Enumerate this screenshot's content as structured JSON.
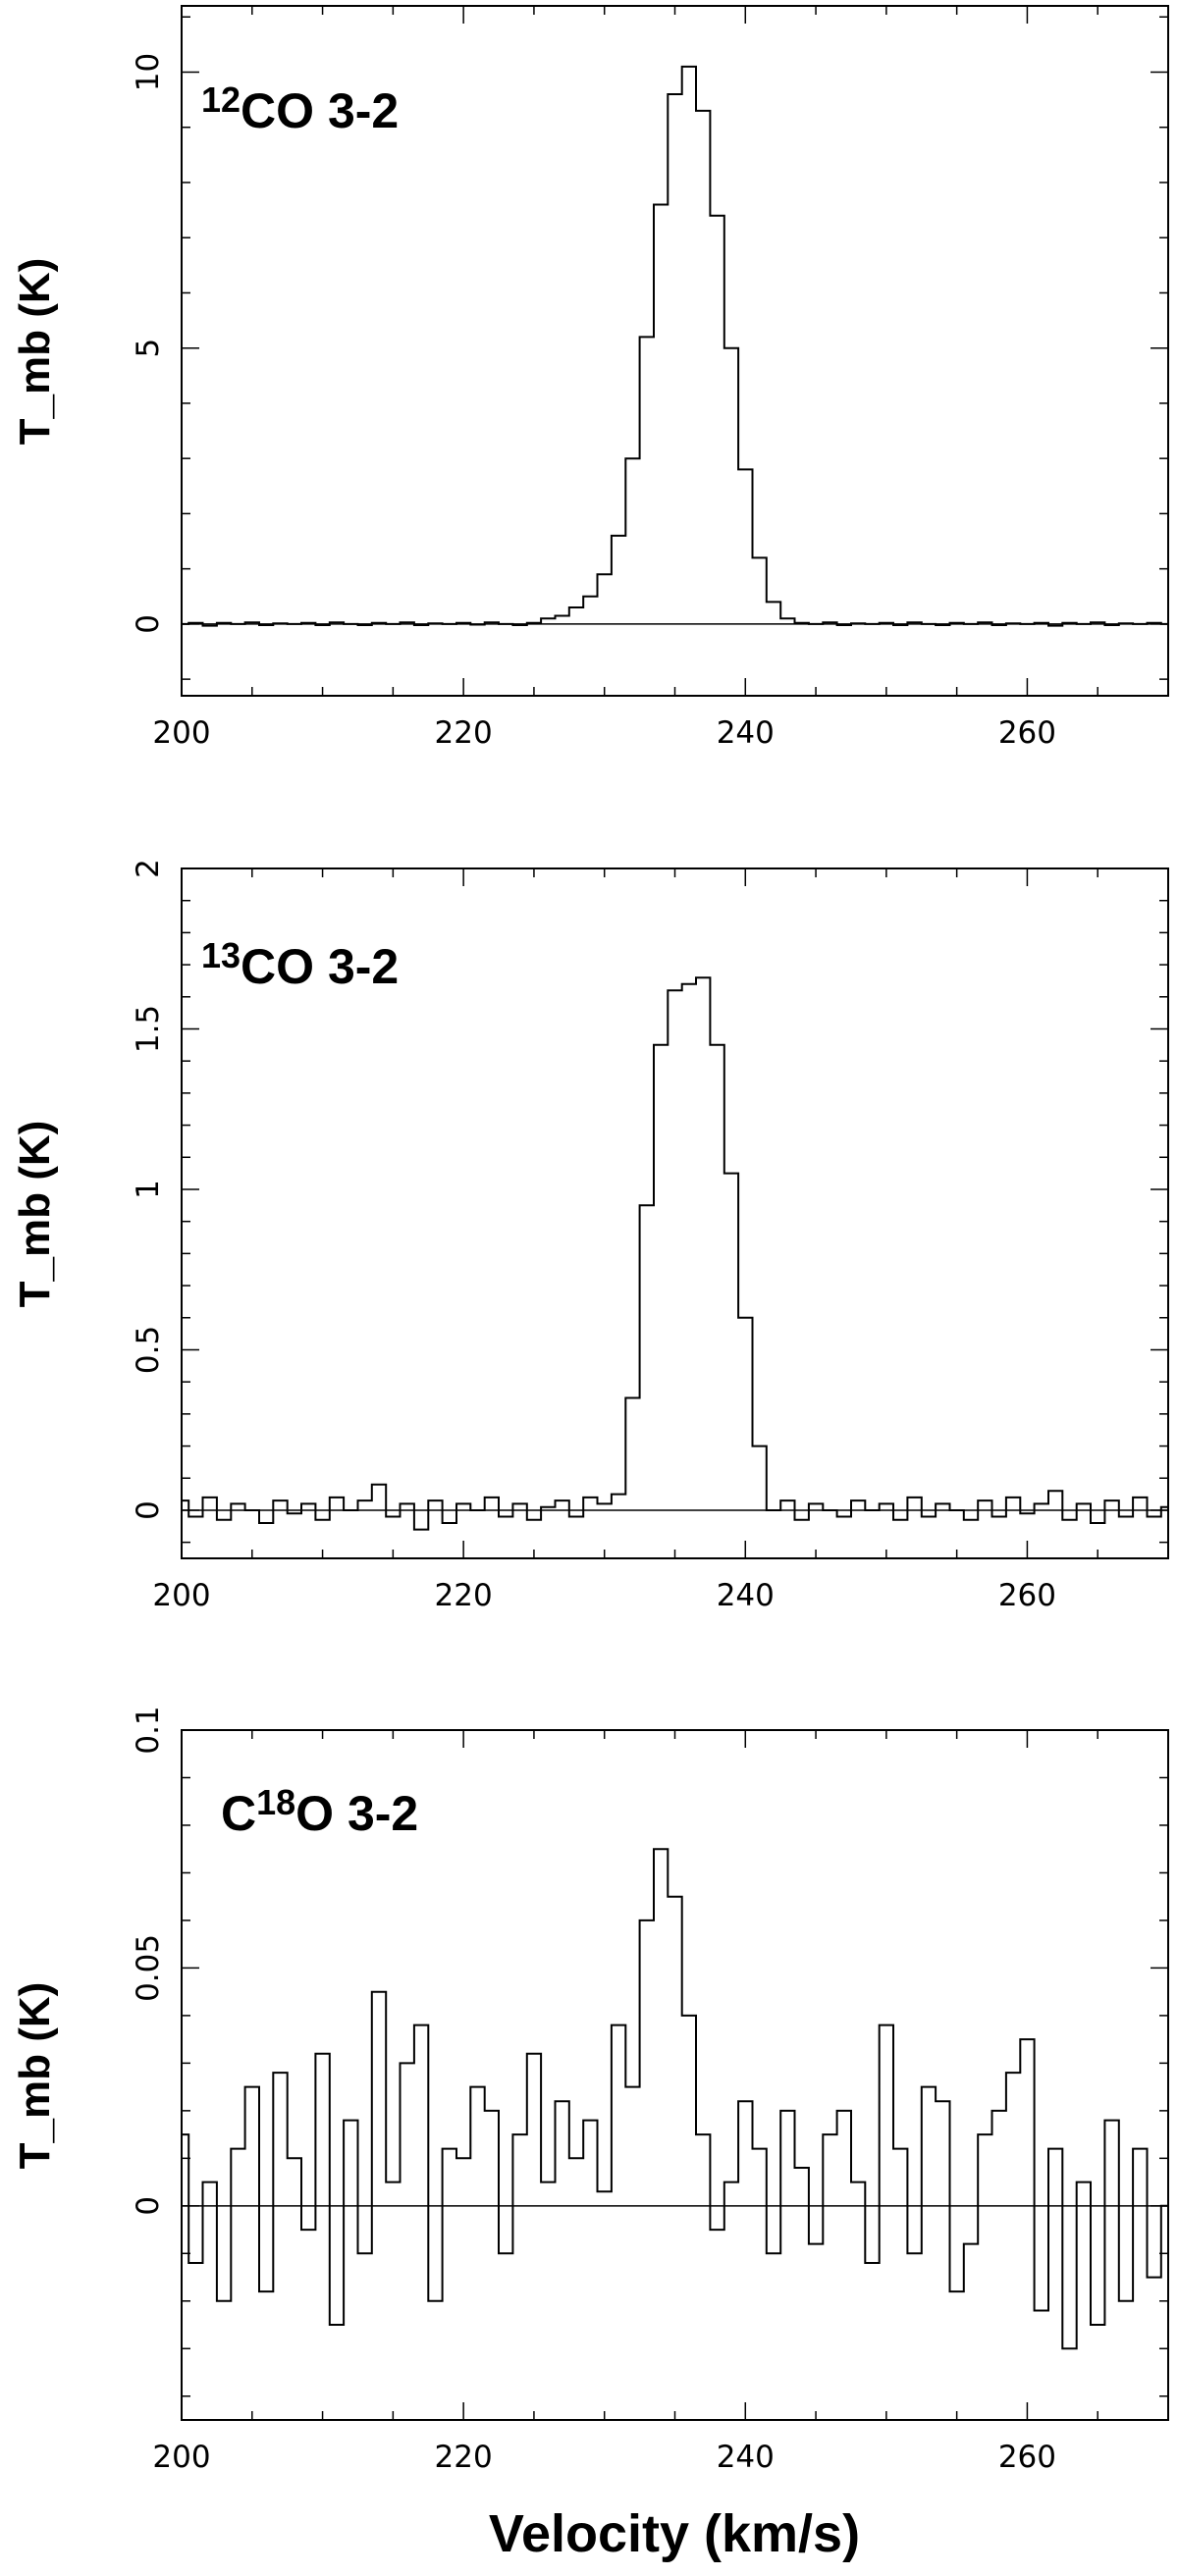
{
  "chart_data": [
    {
      "type": "line",
      "title": "",
      "line_label": {
        "superscript": "12",
        "text": "CO 3-2"
      },
      "xlabel": "",
      "ylabel": "T_mb (K)",
      "xlim": [
        200,
        270
      ],
      "ylim": [
        -1.3,
        11.2
      ],
      "x_ticks": [
        200,
        220,
        240,
        260
      ],
      "y_ticks": [
        0,
        5,
        10
      ],
      "baseline": 0,
      "grid": false,
      "series": [
        {
          "style": "histogram",
          "x": [
            200,
            201,
            202,
            203,
            204,
            205,
            206,
            207,
            208,
            209,
            210,
            211,
            212,
            213,
            214,
            215,
            216,
            217,
            218,
            219,
            220,
            221,
            222,
            223,
            224,
            225,
            226,
            227,
            228,
            229,
            230,
            231,
            232,
            233,
            234,
            235,
            236,
            237,
            238,
            239,
            240,
            241,
            242,
            243,
            244,
            245,
            246,
            247,
            248,
            249,
            250,
            251,
            252,
            253,
            254,
            255,
            256,
            257,
            258,
            259,
            260,
            261,
            262,
            263,
            264,
            265,
            266,
            267,
            268,
            269,
            270
          ],
          "y": [
            0.0,
            0.02,
            -0.03,
            0.02,
            0.0,
            0.03,
            -0.02,
            0.01,
            0.0,
            0.02,
            -0.02,
            0.03,
            0.0,
            -0.02,
            0.02,
            0.0,
            0.03,
            -0.02,
            0.01,
            0.0,
            0.02,
            -0.01,
            0.03,
            0.0,
            -0.02,
            0.02,
            0.1,
            0.15,
            0.3,
            0.5,
            0.9,
            1.6,
            3.0,
            5.2,
            7.6,
            9.6,
            10.1,
            9.3,
            7.4,
            5.0,
            2.8,
            1.2,
            0.4,
            0.1,
            0.02,
            0.0,
            0.03,
            -0.02,
            0.01,
            0.0,
            0.02,
            -0.02,
            0.03,
            0.0,
            -0.02,
            0.02,
            0.0,
            0.03,
            -0.02,
            0.01,
            0.0,
            0.02,
            -0.03,
            0.02,
            0.0,
            0.03,
            -0.02,
            0.01,
            0.0,
            0.02,
            0.0
          ]
        }
      ]
    },
    {
      "type": "line",
      "title": "",
      "line_label": {
        "superscript": "13",
        "text": "CO 3-2"
      },
      "xlabel": "",
      "ylabel": "T_mb (K)",
      "xlim": [
        200,
        270
      ],
      "ylim": [
        -0.15,
        2.0
      ],
      "x_ticks": [
        200,
        220,
        240,
        260
      ],
      "y_ticks": [
        0,
        0.5,
        1,
        1.5,
        2
      ],
      "baseline": 0,
      "grid": false,
      "series": [
        {
          "style": "histogram",
          "x": [
            200,
            201,
            202,
            203,
            204,
            205,
            206,
            207,
            208,
            209,
            210,
            211,
            212,
            213,
            214,
            215,
            216,
            217,
            218,
            219,
            220,
            221,
            222,
            223,
            224,
            225,
            226,
            227,
            228,
            229,
            230,
            231,
            232,
            233,
            234,
            235,
            236,
            237,
            238,
            239,
            240,
            241,
            242,
            243,
            244,
            245,
            246,
            247,
            248,
            249,
            250,
            251,
            252,
            253,
            254,
            255,
            256,
            257,
            258,
            259,
            260,
            261,
            262,
            263,
            264,
            265,
            266,
            267,
            268,
            269,
            270
          ],
          "y": [
            0.03,
            -0.02,
            0.04,
            -0.03,
            0.02,
            0.0,
            -0.04,
            0.03,
            -0.01,
            0.02,
            -0.03,
            0.04,
            0.0,
            0.03,
            0.08,
            -0.02,
            0.02,
            -0.06,
            0.03,
            -0.04,
            0.02,
            0.0,
            0.04,
            -0.02,
            0.02,
            -0.03,
            0.01,
            0.03,
            -0.02,
            0.04,
            0.02,
            0.05,
            0.35,
            0.95,
            1.45,
            1.62,
            1.64,
            1.66,
            1.45,
            1.05,
            0.6,
            0.2,
            0.0,
            0.03,
            -0.03,
            0.02,
            0.0,
            -0.02,
            0.03,
            0.0,
            0.02,
            -0.03,
            0.04,
            -0.02,
            0.02,
            0.0,
            -0.03,
            0.03,
            -0.02,
            0.04,
            -0.01,
            0.02,
            0.06,
            -0.03,
            0.02,
            -0.04,
            0.03,
            -0.02,
            0.04,
            -0.02,
            0.01
          ]
        }
      ]
    },
    {
      "type": "line",
      "title": "",
      "line_label": {
        "prefix": "C",
        "superscript": "18",
        "text": "O 3-2"
      },
      "xlabel": "Velocity (km/s)",
      "ylabel": "T_mb (K)",
      "xlim": [
        200,
        270
      ],
      "ylim": [
        -0.045,
        0.1
      ],
      "x_ticks": [
        200,
        220,
        240,
        260
      ],
      "y_ticks": [
        0,
        0.05,
        0.1
      ],
      "baseline": 0,
      "grid": false,
      "series": [
        {
          "style": "histogram",
          "x": [
            200,
            201,
            202,
            203,
            204,
            205,
            206,
            207,
            208,
            209,
            210,
            211,
            212,
            213,
            214,
            215,
            216,
            217,
            218,
            219,
            220,
            221,
            222,
            223,
            224,
            225,
            226,
            227,
            228,
            229,
            230,
            231,
            232,
            233,
            234,
            235,
            236,
            237,
            238,
            239,
            240,
            241,
            242,
            243,
            244,
            245,
            246,
            247,
            248,
            249,
            250,
            251,
            252,
            253,
            254,
            255,
            256,
            257,
            258,
            259,
            260,
            261,
            262,
            263,
            264,
            265,
            266,
            267,
            268,
            269,
            270
          ],
          "y": [
            0.015,
            -0.012,
            0.005,
            -0.02,
            0.012,
            0.025,
            -0.018,
            0.028,
            0.01,
            -0.005,
            0.032,
            -0.025,
            0.018,
            -0.01,
            0.045,
            0.005,
            0.03,
            0.038,
            -0.02,
            0.012,
            0.01,
            0.025,
            0.02,
            -0.01,
            0.015,
            0.032,
            0.005,
            0.022,
            0.01,
            0.018,
            0.003,
            0.038,
            0.025,
            0.06,
            0.075,
            0.065,
            0.04,
            0.015,
            -0.005,
            0.005,
            0.022,
            0.012,
            -0.01,
            0.02,
            0.008,
            -0.008,
            0.015,
            0.02,
            0.005,
            -0.012,
            0.038,
            0.012,
            -0.01,
            0.025,
            0.022,
            -0.018,
            -0.008,
            0.015,
            0.02,
            0.028,
            0.035,
            -0.022,
            0.012,
            -0.03,
            0.005,
            -0.025,
            0.018,
            -0.02,
            0.012,
            -0.015,
            0.0
          ]
        }
      ]
    }
  ]
}
